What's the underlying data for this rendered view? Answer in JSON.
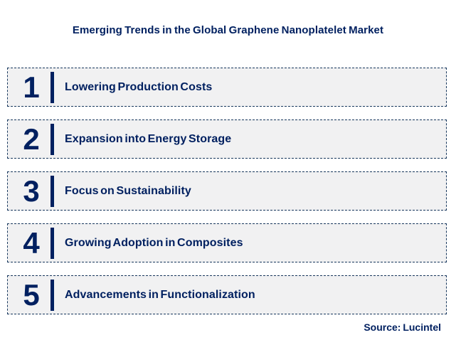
{
  "page": {
    "title": "Emerging Trends in the Global Graphene Nanoplatelet Market",
    "source": "Source: Lucintel"
  },
  "trends": [
    {
      "number": "1",
      "label": "Lowering Production Costs"
    },
    {
      "number": "2",
      "label": "Expansion into Energy Storage"
    },
    {
      "number": "3",
      "label": "Focus on Sustainability"
    },
    {
      "number": "4",
      "label": "Growing Adoption in Composites"
    },
    {
      "number": "5",
      "label": "Advancements in Functionalization"
    }
  ],
  "colors": {
    "navy_text": "#002060",
    "dashed_border": "#17375d",
    "row_background": "#f1f1f2",
    "page_background": "#ffffff"
  }
}
